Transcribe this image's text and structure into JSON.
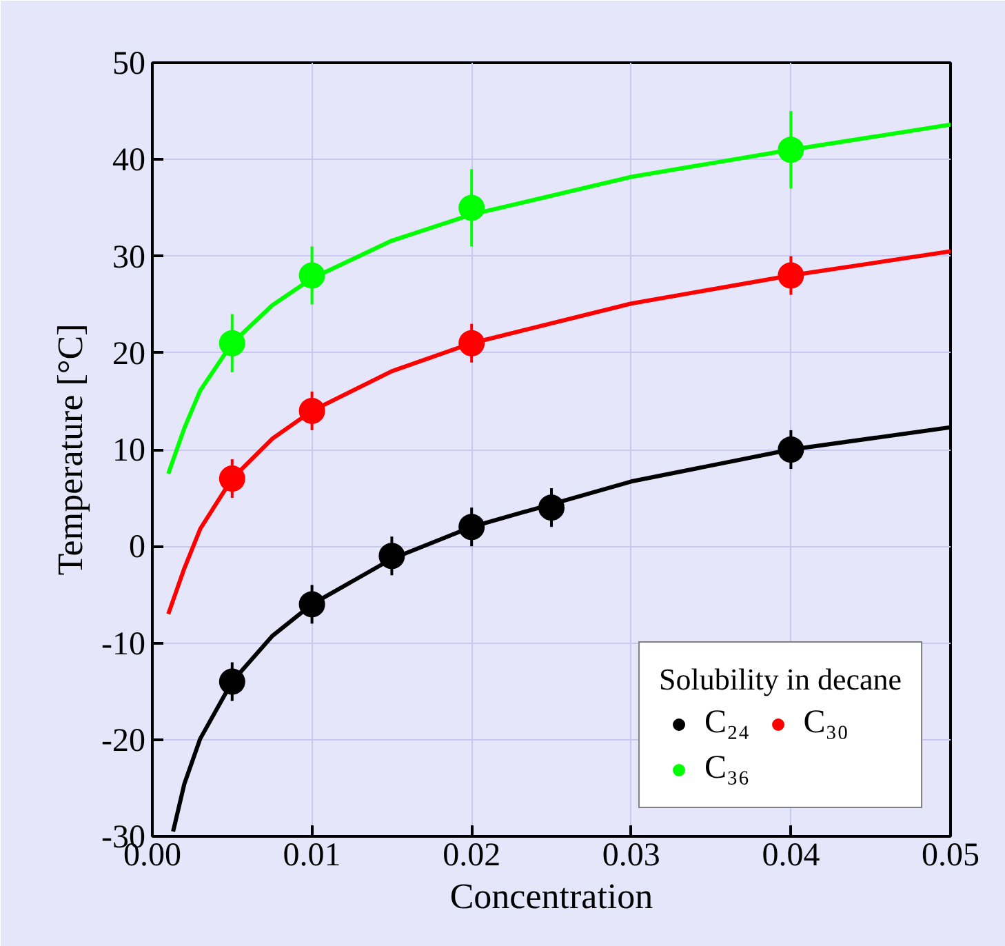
{
  "chart_data": {
    "type": "scatter",
    "xlabel": "Concentration",
    "ylabel": "Temperature [°C]",
    "legend_title": "Solubility in decane",
    "legend": "bottom right",
    "grid": true,
    "marker": "circle",
    "xlim": [
      0,
      0.05
    ],
    "ylim": [
      -30,
      50
    ],
    "xticks": [
      {
        "value": 0,
        "label": "0.00"
      },
      {
        "value": 0.01,
        "label": "0.01"
      },
      {
        "value": 0.02,
        "label": "0.02"
      },
      {
        "value": 0.03,
        "label": "0.03"
      },
      {
        "value": 0.04,
        "label": "0.04"
      },
      {
        "value": 0.05,
        "label": "0.05"
      }
    ],
    "yticks": [
      -30,
      -20,
      -10,
      0,
      10,
      20,
      30,
      40,
      50
    ],
    "series": [
      {
        "type": "line",
        "marker": "none",
        "color": "#000000",
        "x": [
          0.0013,
          0.002,
          0.003,
          0.005,
          0.0075,
          0.01,
          0.015,
          0.02,
          0.03,
          0.04,
          0.05
        ],
        "values": [
          -29.5,
          -24.6,
          -19.9,
          -14,
          -9.3,
          -6,
          -1.3,
          2,
          6.7,
          10,
          12.3
        ]
      },
      {
        "type": "line",
        "marker": "none",
        "color": "#ff0000",
        "x": [
          0.001,
          0.002,
          0.003,
          0.005,
          0.0075,
          0.01,
          0.015,
          0.02,
          0.03,
          0.04,
          0.05
        ],
        "values": [
          -7,
          -2.3,
          1.8,
          7,
          11.1,
          14,
          18.1,
          21,
          25.1,
          28,
          30.5
        ]
      },
      {
        "type": "line",
        "marker": "none",
        "color": "#00ff00",
        "x": [
          0.001,
          0.002,
          0.003,
          0.005,
          0.0075,
          0.01,
          0.015,
          0.02,
          0.03,
          0.04,
          0.05
        ],
        "values": [
          7.5,
          12.2,
          16.1,
          21,
          24.9,
          27.7,
          31.6,
          34.3,
          38.2,
          41,
          43.6
        ]
      },
      {
        "name": "C₂₄",
        "color": "#000000",
        "x": [
          0.005,
          0.01,
          0.015,
          0.02,
          0.025,
          0.04
        ],
        "values": [
          -14,
          -6,
          -1,
          2,
          4,
          10
        ],
        "errors": [
          2,
          2,
          2,
          2,
          2,
          2
        ]
      },
      {
        "name": "C₃₀",
        "color": "#ff0000",
        "x": [
          0.005,
          0.01,
          0.02,
          0.04
        ],
        "values": [
          7,
          14,
          21,
          28
        ],
        "errors": [
          2,
          2,
          2,
          2
        ]
      },
      {
        "name": "C₃₆",
        "color": "#00ff00",
        "x": [
          0.005,
          0.01,
          0.02,
          0.04
        ],
        "values": [
          21,
          28,
          35,
          41
        ],
        "errors": [
          3,
          3,
          4,
          4
        ]
      }
    ]
  }
}
